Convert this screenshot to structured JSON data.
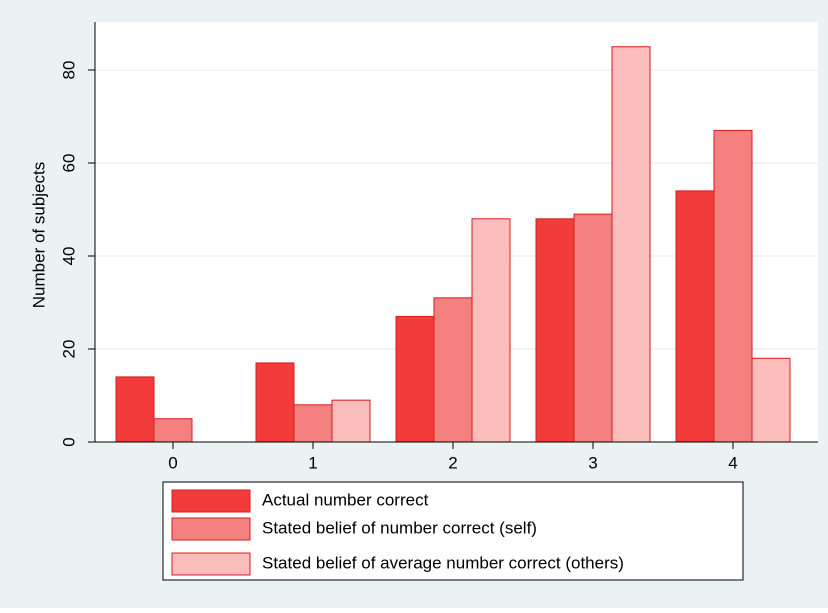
{
  "chart_data": {
    "type": "bar",
    "categories": [
      "0",
      "1",
      "2",
      "3",
      "4"
    ],
    "series": [
      {
        "name": "Actual number correct",
        "color": "#f23b3b",
        "values": [
          14,
          17,
          27,
          48,
          54
        ]
      },
      {
        "name": "Stated belief of number correct (self)",
        "color": "#f58080",
        "values": [
          5,
          8,
          31,
          49,
          67
        ]
      },
      {
        "name": "Stated belief of average number correct (others)",
        "color": "#fbbcbc",
        "values": [
          0,
          9,
          48,
          85,
          18
        ]
      }
    ],
    "y_label": "Number of subjects",
    "ylim": [
      0,
      90
    ],
    "yticks": [
      0,
      20,
      40,
      60,
      80
    ],
    "grid": true,
    "legend": "bottom"
  }
}
